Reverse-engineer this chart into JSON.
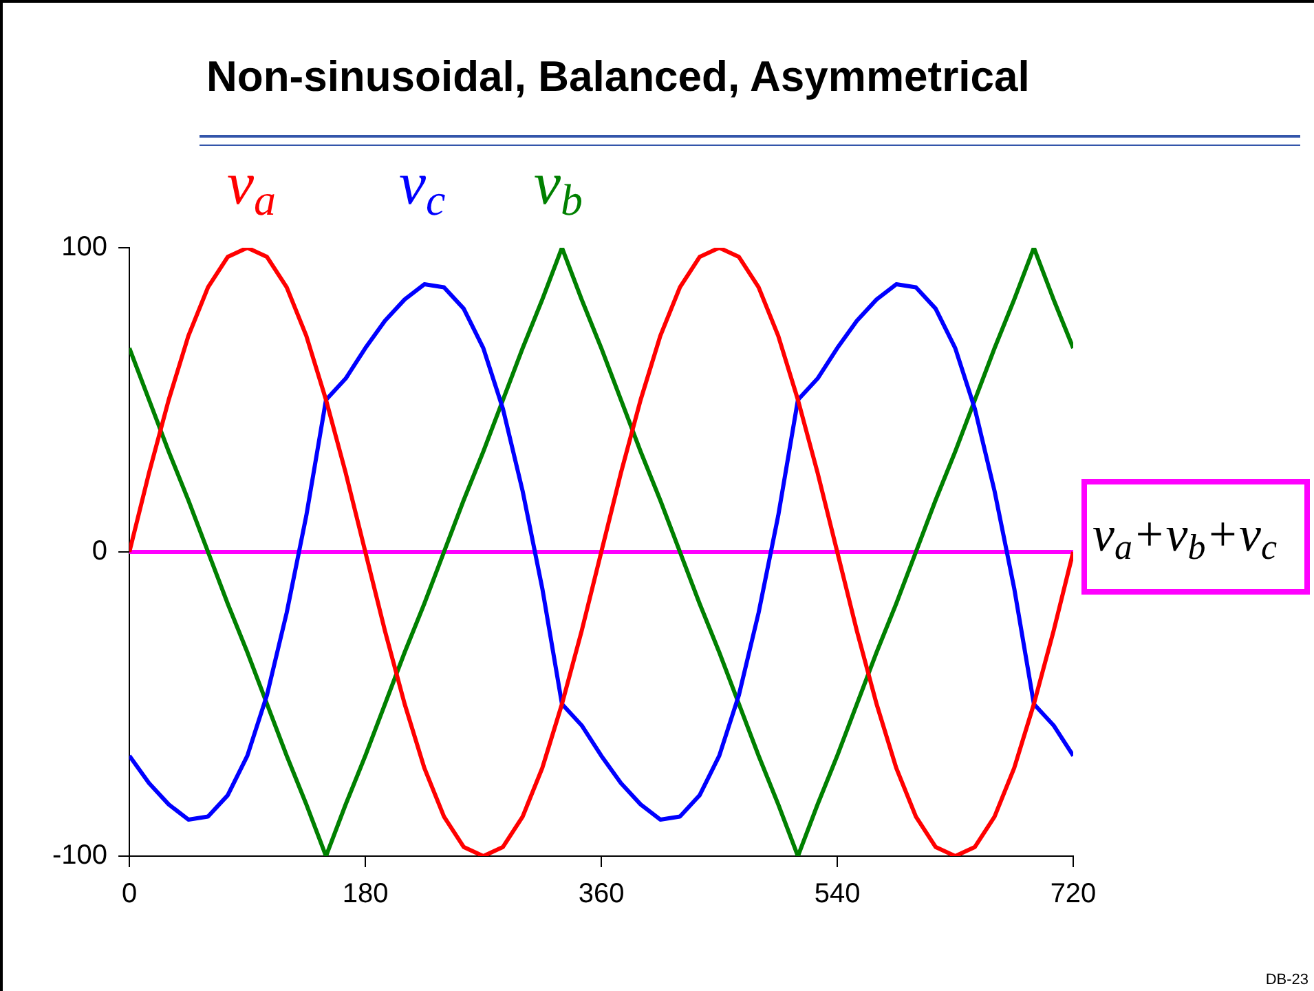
{
  "chart_data": {
    "type": "line",
    "title": "Non-sinusoidal, Balanced, Asymmetrical",
    "x": [
      0,
      15,
      30,
      45,
      60,
      75,
      90,
      105,
      120,
      135,
      150,
      165,
      180,
      195,
      210,
      225,
      240,
      255,
      270,
      285,
      300,
      315,
      330,
      345,
      360,
      375,
      390,
      405,
      420,
      435,
      450,
      465,
      480,
      495,
      510,
      525,
      540,
      555,
      570,
      585,
      600,
      615,
      630,
      645,
      660,
      675,
      690,
      705,
      720
    ],
    "series": [
      {
        "name": "v$_{a}$",
        "color": "#ff0000",
        "values": [
          0,
          26,
          50,
          71,
          87,
          97,
          100,
          97,
          87,
          71,
          50,
          26,
          0,
          -26,
          -50,
          -71,
          -87,
          -97,
          -100,
          -97,
          -87,
          -71,
          -50,
          -26,
          0,
          26,
          50,
          71,
          87,
          97,
          100,
          97,
          87,
          71,
          50,
          26,
          0,
          -26,
          -50,
          -71,
          -87,
          -97,
          -100,
          -97,
          -87,
          -71,
          -50,
          -26,
          0
        ]
      },
      {
        "name": "v$_{c}$",
        "color": "#0000ff",
        "values": [
          -67,
          -76,
          -83,
          -88,
          -87,
          -80,
          -67,
          -47,
          -20,
          12,
          50,
          57,
          67,
          76,
          83,
          88,
          87,
          80,
          67,
          47,
          20,
          -12,
          -50,
          -57,
          -67,
          -76,
          -83,
          -88,
          -87,
          -80,
          -67,
          -47,
          -20,
          12,
          50,
          57,
          67,
          76,
          83,
          88,
          87,
          80,
          67,
          47,
          20,
          -12,
          -50,
          -57,
          -67
        ]
      },
      {
        "name": "v$_{b}$",
        "color": "#008000",
        "values": [
          67,
          50,
          33,
          17,
          0,
          -17,
          -33,
          -50,
          -67,
          -83,
          -100,
          -83,
          -67,
          -50,
          -33,
          -17,
          0,
          17,
          33,
          50,
          67,
          83,
          100,
          83,
          67,
          50,
          33,
          17,
          0,
          -17,
          -33,
          -50,
          -67,
          -83,
          -100,
          -83,
          -67,
          -50,
          -33,
          -17,
          0,
          17,
          33,
          50,
          67,
          83,
          100,
          83,
          67
        ]
      },
      {
        "name": "v$_{a}$+v$_{b}$+v$_{c}$",
        "color": "#ff00ff",
        "values": [
          0,
          0,
          0,
          0,
          0,
          0,
          0,
          0,
          0,
          0,
          0,
          0,
          0,
          0,
          0,
          0,
          0,
          0,
          0,
          0,
          0,
          0,
          0,
          0,
          0,
          0,
          0,
          0,
          0,
          0,
          0,
          0,
          0,
          0,
          0,
          0,
          0,
          0,
          0,
          0,
          0,
          0,
          0,
          0,
          0,
          0,
          0,
          0,
          0
        ]
      }
    ],
    "xlim": [
      0,
      720
    ],
    "xticks": [
      0,
      180,
      360,
      540,
      720
    ],
    "ylim": [
      -100,
      100
    ],
    "yticks": [
      -100,
      0,
      100
    ],
    "grid": false,
    "legend": "top",
    "marker": "none",
    "line_style": "solid",
    "annotations": [
      "DB-23"
    ]
  }
}
